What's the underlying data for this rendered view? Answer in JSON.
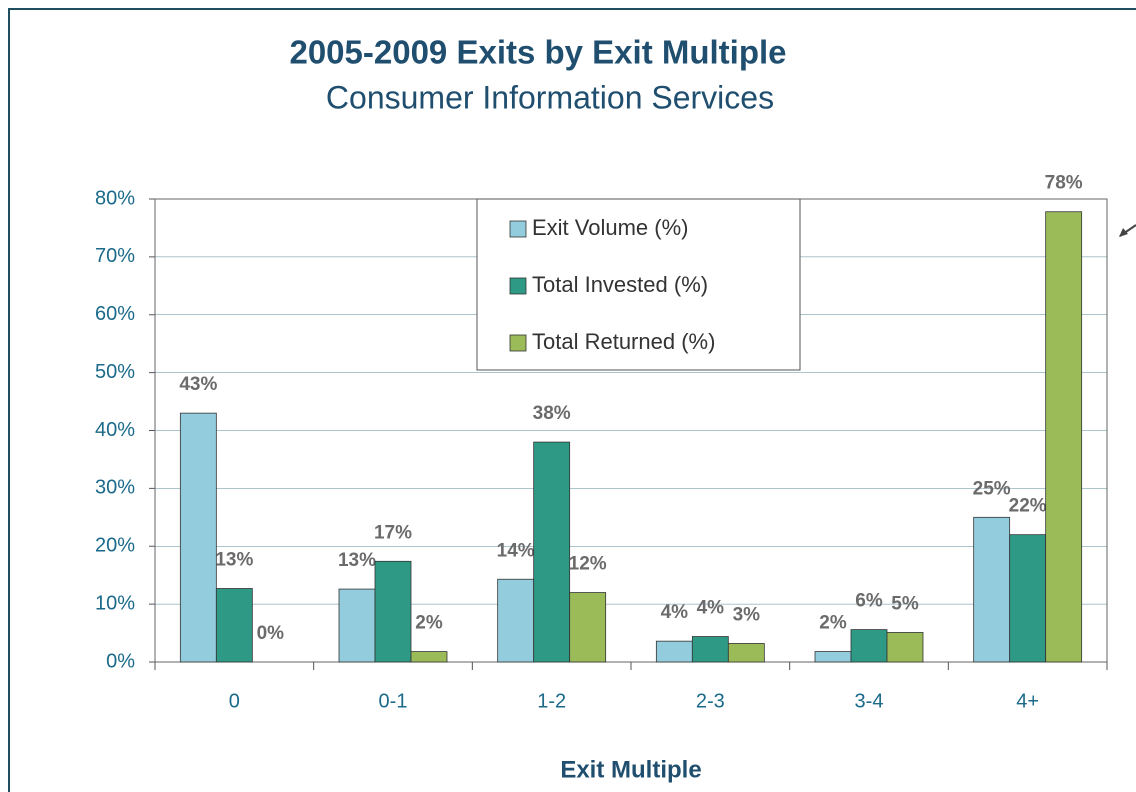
{
  "chart_data": {
    "type": "bar",
    "title": "2005-2009 Exits by Exit Multiple",
    "subtitle": "Consumer Information Services",
    "x_label": "Exit Multiple",
    "categories": [
      "0",
      "0-1",
      "1-2",
      "2-3",
      "3-4",
      "4+"
    ],
    "series": [
      {
        "name": "Exit Volume (%)",
        "color": "#93cddd",
        "values": [
          43,
          12.6,
          14.3,
          3.6,
          1.8,
          25
        ],
        "value_labels": [
          "43%",
          "13%",
          "14%",
          "4%",
          "2%",
          "25%"
        ]
      },
      {
        "name": "Total Invested (%)",
        "color": "#2e9a86",
        "values": [
          12.7,
          17.4,
          38,
          4.4,
          5.6,
          22
        ],
        "value_labels": [
          "13%",
          "17%",
          "38%",
          "4%",
          "6%",
          "22%"
        ]
      },
      {
        "name": "Total Returned (%)",
        "color": "#9bbb59",
        "values": [
          0,
          1.8,
          12,
          3.2,
          5.1,
          77.8
        ],
        "value_labels": [
          "0%",
          "2%",
          "12%",
          "3%",
          "5%",
          "78%"
        ]
      }
    ],
    "ylim": [
      0,
      80
    ],
    "yticks": [
      {
        "value": 0,
        "label": "0%"
      },
      {
        "value": 10,
        "label": "10%"
      },
      {
        "value": 20,
        "label": "20%"
      },
      {
        "value": 30,
        "label": "30%"
      },
      {
        "value": 40,
        "label": "40%"
      },
      {
        "value": 50,
        "label": "50%"
      },
      {
        "value": 60,
        "label": "60%"
      },
      {
        "value": 70,
        "label": "70%"
      },
      {
        "value": 80,
        "label": "80%"
      }
    ],
    "grid": true,
    "legend": "top"
  }
}
